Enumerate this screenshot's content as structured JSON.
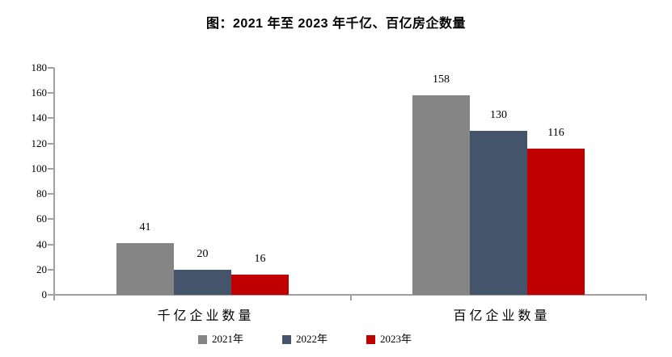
{
  "page": {
    "background": "#ffffff"
  },
  "chart_data": {
    "type": "bar",
    "title": "图：2021 年至 2023 年千亿、百亿房企数量",
    "categories": [
      "千亿企业数量",
      "百亿企业数量"
    ],
    "series": [
      {
        "name": "2021年",
        "color": "#858585",
        "values": [
          41,
          158
        ]
      },
      {
        "name": "2022年",
        "color": "#44546A",
        "values": [
          20,
          130
        ]
      },
      {
        "name": "2023年",
        "color": "#C00000",
        "values": [
          16,
          116
        ]
      }
    ],
    "ylim": [
      0,
      180
    ],
    "yticks": [
      0,
      20,
      40,
      60,
      80,
      100,
      120,
      140,
      160,
      180
    ],
    "grid": false,
    "data_labels": true,
    "legend_position": "bottom",
    "axis_color": "#A0A0A0",
    "text_color": "#000000"
  }
}
